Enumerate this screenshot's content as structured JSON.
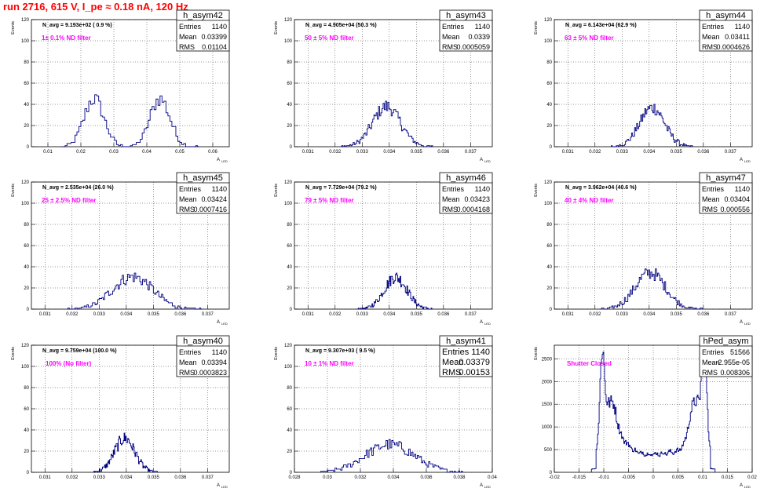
{
  "page_title": "run 2716,   615 V, I_pe ≈ 0.18 nA, 120 Hz",
  "labels": {
    "entries": "Entries",
    "mean": "Mean",
    "rms": "RMS",
    "y_axis": "Events",
    "x_axis": "A",
    "x_axis_sub": "LED"
  },
  "colors": {
    "title": "#ff0000",
    "hist": "#000080",
    "annotation": "#ff00ff",
    "grid": "#000000"
  },
  "chart_data": [
    {
      "type": "bar",
      "name": "h_asym42",
      "nav": "N_avg = 9.193e+02 ( 0.9 %)",
      "note": "1± 0.1% ND filter",
      "entries": "1140",
      "mean": "0.03399",
      "rms": "0.01104",
      "xlim": [
        0.005,
        0.065
      ],
      "ylim": [
        0,
        120
      ],
      "xticks": [
        0.01,
        0.02,
        0.03,
        0.04,
        0.05,
        0.06
      ],
      "xticklabels": [
        "0.01",
        "0.02",
        "0.03",
        "0.04",
        "0.05",
        "0.06"
      ],
      "yticks": [
        0,
        20,
        40,
        60,
        80,
        100,
        120
      ],
      "yticklabels": [
        "0",
        "20",
        "40",
        "60",
        "80",
        "100",
        "120"
      ],
      "comps": [
        [
          0.024,
          0.003,
          1
        ],
        [
          0.044,
          0.003,
          1
        ]
      ],
      "bins": 70,
      "norm": 1140,
      "xmin": 0.014,
      "xmax": 0.056
    },
    {
      "type": "bar",
      "name": "h_asym43",
      "nav": "N_avg = 4.905e+04 (50.3 %)",
      "note": "50 ± 5% ND filter",
      "entries": "1140",
      "mean": "0.0339",
      "rms": "0.0005059",
      "xlim": [
        0.0305,
        0.0378
      ],
      "ylim": [
        0,
        120
      ],
      "xticks": [
        0.031,
        0.032,
        0.033,
        0.034,
        0.035,
        0.036,
        0.037
      ],
      "xticklabels": [
        "0.031",
        "0.032",
        "0.033",
        "0.034",
        "0.035",
        "0.036",
        "0.037"
      ],
      "yticks": [
        0,
        20,
        40,
        60,
        80,
        100,
        120
      ],
      "yticklabels": [
        "0",
        "20",
        "40",
        "60",
        "80",
        "100",
        "120"
      ],
      "comps": [
        [
          0.0339,
          0.00051,
          1
        ]
      ],
      "bins": 80,
      "norm": 1140,
      "xmin": 0.0322,
      "xmax": 0.0356
    },
    {
      "type": "bar",
      "name": "h_asym44",
      "nav": "N_avg = 6.143e+04 (62.9 %)",
      "note": "63 ± 5% ND filter",
      "entries": "1140",
      "mean": "0.03411",
      "rms": "0.0004626",
      "xlim": [
        0.0305,
        0.0378
      ],
      "ylim": [
        0,
        120
      ],
      "xticks": [
        0.031,
        0.032,
        0.033,
        0.034,
        0.035,
        0.036,
        0.037
      ],
      "xticklabels": [
        "0.031",
        "0.032",
        "0.033",
        "0.034",
        "0.035",
        "0.036",
        "0.037"
      ],
      "yticks": [
        0,
        20,
        40,
        60,
        80,
        100,
        120
      ],
      "yticklabels": [
        "0",
        "20",
        "40",
        "60",
        "80",
        "100",
        "120"
      ],
      "comps": [
        [
          0.03411,
          0.00046,
          1
        ]
      ],
      "bins": 80,
      "norm": 1140,
      "xmin": 0.0326,
      "xmax": 0.0356
    },
    {
      "type": "bar",
      "name": "h_asym45",
      "nav": "N_avg = 2.535e+04 (26.0 %)",
      "note": "25 ± 2.5% ND filter",
      "entries": "1140",
      "mean": "0.03424",
      "rms": "0.0007416",
      "xlim": [
        0.0305,
        0.0378
      ],
      "ylim": [
        0,
        120
      ],
      "xticks": [
        0.031,
        0.032,
        0.033,
        0.034,
        0.035,
        0.036,
        0.037
      ],
      "xticklabels": [
        "0.031",
        "0.032",
        "0.033",
        "0.034",
        "0.035",
        "0.036",
        "0.037"
      ],
      "yticks": [
        0,
        20,
        40,
        60,
        80,
        100,
        120
      ],
      "yticklabels": [
        "0",
        "20",
        "40",
        "60",
        "80",
        "100",
        "120"
      ],
      "comps": [
        [
          0.03424,
          0.00074,
          1
        ]
      ],
      "bins": 100,
      "norm": 1140,
      "xmin": 0.0318,
      "xmax": 0.0368
    },
    {
      "type": "bar",
      "name": "h_asym46",
      "nav": "N_avg = 7.729e+04 (79.2 %)",
      "note": "79 ± 5% ND filter",
      "entries": "1140",
      "mean": "0.03423",
      "rms": "0.0004168",
      "xlim": [
        0.0305,
        0.0378
      ],
      "ylim": [
        0,
        120
      ],
      "xticks": [
        0.031,
        0.032,
        0.033,
        0.034,
        0.035,
        0.036,
        0.037
      ],
      "xticklabels": [
        "0.031",
        "0.032",
        "0.033",
        "0.034",
        "0.035",
        "0.036",
        "0.037"
      ],
      "yticks": [
        0,
        20,
        40,
        60,
        80,
        100,
        120
      ],
      "yticklabels": [
        "0",
        "20",
        "40",
        "60",
        "80",
        "100",
        "120"
      ],
      "comps": [
        [
          0.03423,
          0.00042,
          1
        ]
      ],
      "bins": 100,
      "norm": 1140,
      "xmin": 0.0328,
      "xmax": 0.0356
    },
    {
      "type": "bar",
      "name": "h_asym47",
      "nav": "N_avg = 3.962e+04 (40.6 %)",
      "note": "40 ± 4% ND filter",
      "entries": "1140",
      "mean": "0.03404",
      "rms": "0.000556",
      "xlim": [
        0.0305,
        0.0378
      ],
      "ylim": [
        0,
        120
      ],
      "xticks": [
        0.031,
        0.032,
        0.033,
        0.034,
        0.035,
        0.036,
        0.037
      ],
      "xticklabels": [
        "0.031",
        "0.032",
        "0.033",
        "0.034",
        "0.035",
        "0.036",
        "0.037"
      ],
      "yticks": [
        0,
        20,
        40,
        60,
        80,
        100,
        120
      ],
      "yticklabels": [
        "0",
        "20",
        "40",
        "60",
        "80",
        "100",
        "120"
      ],
      "comps": [
        [
          0.03404,
          0.00056,
          1
        ]
      ],
      "bins": 90,
      "norm": 1140,
      "xmin": 0.0322,
      "xmax": 0.036
    },
    {
      "type": "bar",
      "name": "h_asym40",
      "nav": "N_avg = 9.759e+04 (100.0 %)",
      "note": "100% (No filter)",
      "entries": "1140",
      "mean": "0.03394",
      "rms": "0.0003823",
      "xlim": [
        0.0305,
        0.0378
      ],
      "ylim": [
        0,
        120
      ],
      "xticks": [
        0.031,
        0.032,
        0.033,
        0.034,
        0.035,
        0.036,
        0.037
      ],
      "xticklabels": [
        "0.031",
        "0.032",
        "0.033",
        "0.034",
        "0.035",
        "0.036",
        "0.037"
      ],
      "yticks": [
        0,
        20,
        40,
        60,
        80,
        100,
        120
      ],
      "yticklabels": [
        "0",
        "20",
        "40",
        "60",
        "80",
        "100",
        "120"
      ],
      "comps": [
        [
          0.03394,
          0.00038,
          1
        ]
      ],
      "bins": 90,
      "norm": 1140,
      "xmin": 0.0328,
      "xmax": 0.0352
    },
    {
      "type": "bar",
      "name": "h_asym41",
      "nav": "N_avg = 9.307e+03 ( 9.5 %)",
      "note": "10 ± 1% ND filter",
      "entries": "1140",
      "mean": "0.03379",
      "rms": "0.00153",
      "xlim": [
        0.028,
        0.04
      ],
      "ylim": [
        0,
        120
      ],
      "xticks": [
        0.028,
        0.03,
        0.032,
        0.034,
        0.036,
        0.038,
        0.04
      ],
      "xticklabels": [
        "0.028",
        "0.03",
        "0.032",
        "0.034",
        "0.036",
        "0.038",
        "0.04"
      ],
      "yticks": [
        0,
        20,
        40,
        60,
        80,
        100,
        120
      ],
      "yticklabels": [
        "0",
        "20",
        "40",
        "60",
        "80",
        "100",
        "120"
      ],
      "comps": [
        [
          0.03379,
          0.0015,
          1
        ]
      ],
      "bins": 100,
      "norm": 1140,
      "xmin": 0.0296,
      "xmax": 0.0382
    },
    {
      "type": "bar",
      "name": "hPed_asym",
      "nav": "",
      "note": "Shutter Closed",
      "entries": "51566",
      "mean": "-2.955e-05",
      "rms": "0.008306",
      "xlim": [
        -0.02,
        0.02
      ],
      "ylim": [
        0,
        2800
      ],
      "xticks": [
        -0.02,
        -0.015,
        -0.01,
        -0.005,
        0,
        0.005,
        0.01,
        0.015,
        0.02
      ],
      "xticklabels": [
        "-0.02",
        "-0.015",
        "-0.01",
        "-0.005",
        "0",
        "0.005",
        "0.01",
        "0.015",
        "0.02"
      ],
      "yticks": [
        0,
        500,
        1000,
        1500,
        2000,
        2500
      ],
      "yticklabels": [
        "0",
        "500",
        "1000",
        "1500",
        "2000",
        "2500"
      ],
      "special": "pedestal",
      "bins": 160,
      "xmin": -0.0125,
      "xmax": 0.0125
    }
  ]
}
